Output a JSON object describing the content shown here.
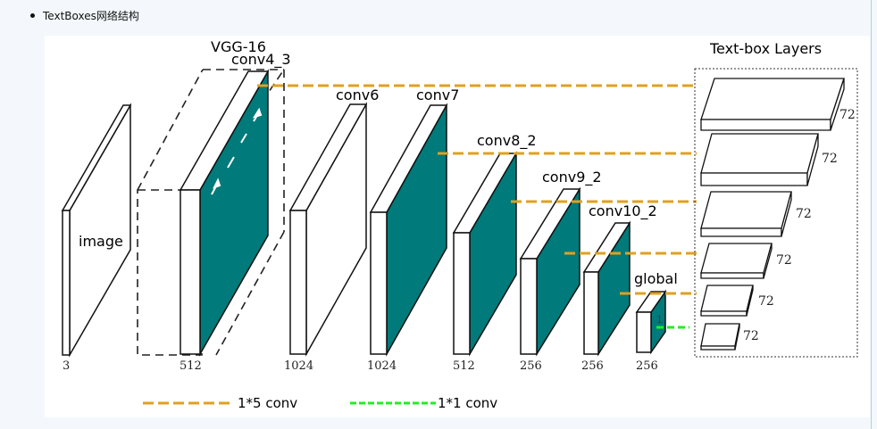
{
  "bullet": {
    "text": "TextBoxes网络结构"
  },
  "diagram": {
    "title_vgg": "VGG-16",
    "layers": [
      {
        "name": "image",
        "count": "3"
      },
      {
        "name": "conv4_3",
        "count": "512"
      },
      {
        "name": "conv6",
        "count": "1024"
      },
      {
        "name": "conv7",
        "count": "1024"
      },
      {
        "name": "conv8_2",
        "count": "512"
      },
      {
        "name": "conv9_2",
        "count": "256"
      },
      {
        "name": "conv10_2",
        "count": "256"
      },
      {
        "name": "global",
        "count": "256"
      }
    ],
    "global_inner": "1",
    "textbox": {
      "title": "Text-box Layers",
      "counts": [
        "72",
        "72",
        "72",
        "72",
        "72",
        "72"
      ]
    },
    "legend": {
      "conv15": "1*5 conv",
      "conv11": "1*1 conv"
    },
    "colors": {
      "teal": "#007a7a",
      "orange": "#e0a020",
      "green": "#22ee22"
    }
  }
}
